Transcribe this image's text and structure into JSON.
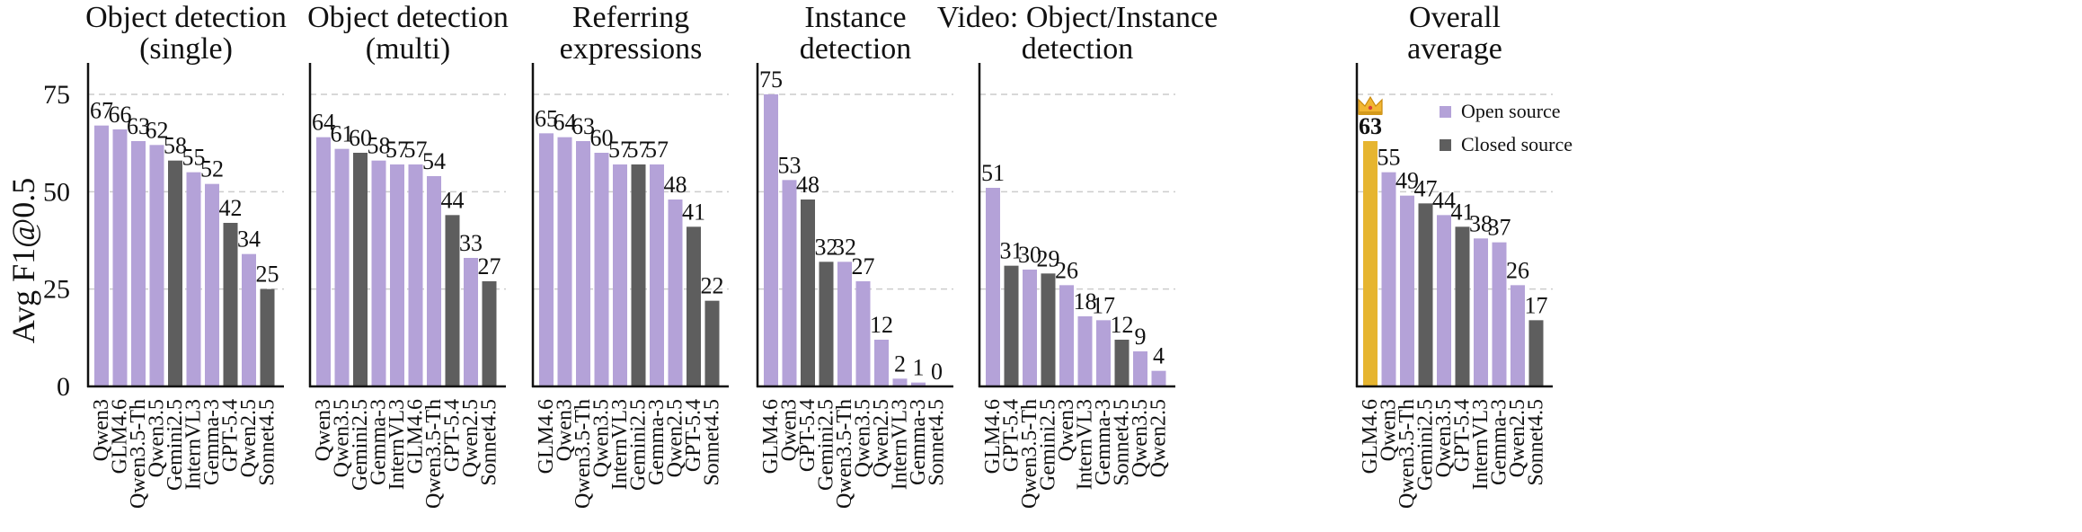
{
  "ylabel": "Avg F1@0.5",
  "colors": {
    "open": "#b4a2d8",
    "closed": "#5e5e5e",
    "best": "#e6b530",
    "grid": "#cccccc"
  },
  "legend": {
    "open_label": "Open source",
    "closed_label": "Closed source",
    "placement": "top-right"
  },
  "chart_data": [
    {
      "type": "bar",
      "title": [
        "Object detection",
        "(single)"
      ],
      "categories": [
        "Qwen3",
        "GLM4.6",
        "Qwen3.5-Th",
        "Qwen3.5",
        "Gemini2.5",
        "InternVL3",
        "Gemma-3",
        "GPT-5.4",
        "Qwen2.5",
        "Sonnet4.5"
      ],
      "values": [
        67,
        66,
        63,
        62,
        58,
        55,
        52,
        42,
        34,
        25
      ],
      "source": [
        "open",
        "open",
        "open",
        "open",
        "closed",
        "open",
        "open",
        "closed",
        "open",
        "closed"
      ],
      "ylim": [
        0,
        80
      ],
      "yticks": [
        0,
        25,
        50,
        75
      ],
      "grid": true
    },
    {
      "type": "bar",
      "title": [
        "Object detection",
        "(multi)"
      ],
      "categories": [
        "Qwen3",
        "Qwen3.5",
        "Gemini2.5",
        "Gemma-3",
        "InternVL3",
        "GLM4.6",
        "Qwen3.5-Th",
        "GPT-5.4",
        "Qwen2.5",
        "Sonnet4.5"
      ],
      "values": [
        64,
        61,
        60,
        58,
        57,
        57,
        54,
        44,
        33,
        27
      ],
      "source": [
        "open",
        "open",
        "closed",
        "open",
        "open",
        "open",
        "open",
        "closed",
        "open",
        "closed"
      ],
      "ylim": [
        0,
        80
      ],
      "yticks": [
        0,
        25,
        50,
        75
      ],
      "grid": true
    },
    {
      "type": "bar",
      "title": [
        "Referring",
        "expressions"
      ],
      "categories": [
        "GLM4.6",
        "Qwen3",
        "Qwen3.5-Th",
        "Qwen3.5",
        "InternVL3",
        "Gemini2.5",
        "Gemma-3",
        "Qwen2.5",
        "GPT-5.4",
        "Sonnet4.5"
      ],
      "values": [
        65,
        64,
        63,
        60,
        57,
        57,
        57,
        48,
        41,
        22
      ],
      "source": [
        "open",
        "open",
        "open",
        "open",
        "open",
        "closed",
        "open",
        "open",
        "closed",
        "closed"
      ],
      "ylim": [
        0,
        80
      ],
      "yticks": [
        0,
        25,
        50,
        75
      ],
      "grid": true
    },
    {
      "type": "bar",
      "title": [
        "Instance",
        "detection"
      ],
      "categories": [
        "GLM4.6",
        "Qwen3",
        "GPT-5.4",
        "Gemini2.5",
        "Qwen3.5-Th",
        "Qwen3.5",
        "Qwen2.5",
        "InternVL3",
        "Gemma-3",
        "Sonnet4.5"
      ],
      "values": [
        75,
        53,
        48,
        32,
        32,
        27,
        12,
        2,
        1,
        0
      ],
      "source": [
        "open",
        "open",
        "closed",
        "closed",
        "open",
        "open",
        "open",
        "open",
        "open",
        "closed"
      ],
      "ylim": [
        0,
        80
      ],
      "yticks": [
        0,
        25,
        50,
        75
      ],
      "grid": true
    },
    {
      "type": "bar",
      "title": [
        "Video: Object/Instance",
        "detection"
      ],
      "categories": [
        "GLM4.6",
        "GPT-5.4",
        "Qwen3.5-Th",
        "Gemini2.5",
        "Qwen3",
        "InternVL3",
        "Gemma-3",
        "Sonnet4.5",
        "Qwen3.5",
        "Qwen2.5"
      ],
      "values": [
        51,
        31,
        30,
        29,
        26,
        18,
        17,
        12,
        9,
        4
      ],
      "source": [
        "open",
        "closed",
        "open",
        "closed",
        "open",
        "open",
        "open",
        "closed",
        "open",
        "open"
      ],
      "ylim": [
        0,
        80
      ],
      "yticks": [
        0,
        25,
        50,
        75
      ],
      "grid": true
    },
    {
      "type": "bar",
      "title": [
        "Overall",
        "average"
      ],
      "categories": [
        "GLM4.6",
        "Qwen3",
        "Qwen3.5-Th",
        "Gemini2.5",
        "Qwen3.5",
        "GPT-5.4",
        "InternVL3",
        "Gemma-3",
        "Qwen2.5",
        "Sonnet4.5"
      ],
      "values": [
        63,
        55,
        49,
        47,
        44,
        41,
        38,
        37,
        26,
        17
      ],
      "source": [
        "best",
        "open",
        "open",
        "closed",
        "open",
        "closed",
        "open",
        "open",
        "open",
        "closed"
      ],
      "highlight_index": 0,
      "highlight_icon": "crown-icon",
      "ylim": [
        0,
        80
      ],
      "yticks": [
        0,
        25,
        50,
        75
      ],
      "grid": true,
      "legend": true
    }
  ]
}
